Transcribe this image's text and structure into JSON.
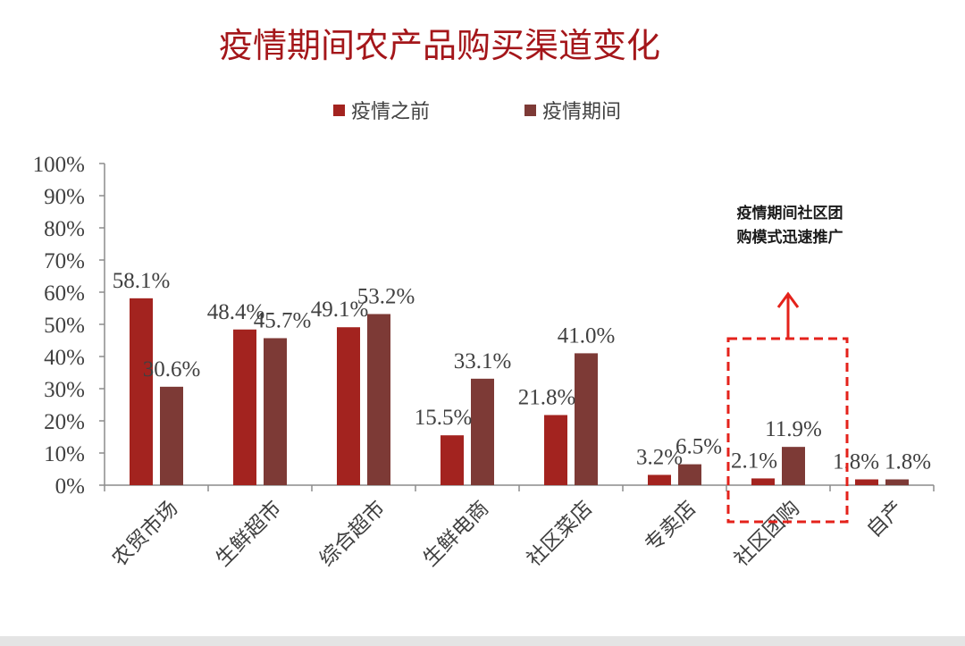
{
  "colors": {
    "before": "#a3231f",
    "during": "#7d3a36",
    "title": "#a4161a",
    "axis": "#8c8c8c",
    "text": "#404040",
    "highlight": "#e4221b"
  },
  "annotation": {
    "line1": "疫情期间社区团",
    "line2": "购模式迅速推广",
    "highlight_category": "社区团购"
  },
  "chart_data": {
    "type": "bar",
    "title": "疫情期间农产品购买渠道变化",
    "xlabel": "",
    "ylabel": "",
    "ylim": [
      0,
      100
    ],
    "yticks": [
      "0%",
      "10%",
      "20%",
      "30%",
      "40%",
      "50%",
      "60%",
      "70%",
      "80%",
      "90%",
      "100%"
    ],
    "legend_position": "top-center",
    "grid": false,
    "categories": [
      "农贸市场",
      "生鲜超市",
      "综合超市",
      "生鲜电商",
      "社区菜店",
      "专卖店",
      "社区团购",
      "自产"
    ],
    "series": [
      {
        "name": "疫情之前",
        "values": [
          58.1,
          48.4,
          49.1,
          15.5,
          21.8,
          3.2,
          2.1,
          1.8
        ],
        "labels": [
          "58.1%",
          "48.4%",
          "49.1%",
          "15.5%",
          "21.8%",
          "3.2%",
          "2.1%",
          "1.8%"
        ]
      },
      {
        "name": "疫情期间",
        "values": [
          30.6,
          45.7,
          53.2,
          33.1,
          41.0,
          6.5,
          11.9,
          1.8
        ],
        "labels": [
          "30.6%",
          "45.7%",
          "53.2%",
          "33.1%",
          "41.0%",
          "6.5%",
          "11.9%",
          "1.8%"
        ]
      }
    ]
  }
}
